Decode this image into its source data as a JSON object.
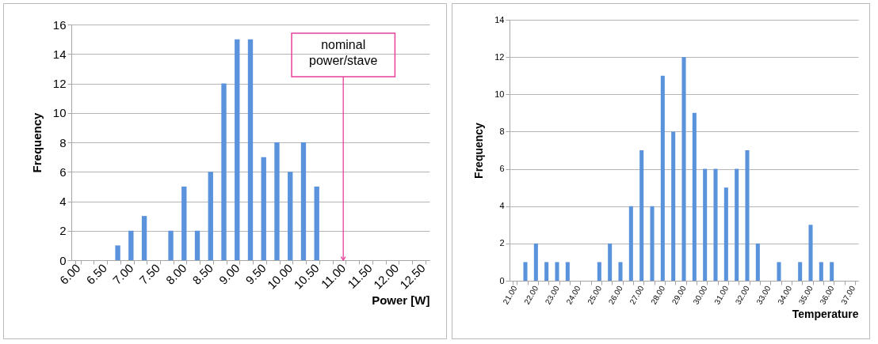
{
  "chart_data": [
    {
      "type": "bar",
      "xlabel": "Power [W]",
      "ylabel": "Frequency",
      "color": "#5a93dc",
      "grid": "y",
      "ylim": [
        0,
        16
      ],
      "yticks": [
        0,
        2,
        4,
        6,
        8,
        10,
        12,
        14,
        16
      ],
      "categories": [
        "6.00",
        null,
        "6.50",
        null,
        "7.00",
        null,
        "7.50",
        null,
        "8.00",
        null,
        "8.50",
        null,
        "9.00",
        null,
        "9.50",
        null,
        "10.00",
        null,
        "10.50",
        null,
        "11.00",
        null,
        "11.50",
        null,
        "12.00",
        null,
        "12.50"
      ],
      "values": [
        0,
        0,
        0,
        1,
        2,
        3,
        0,
        2,
        5,
        2,
        6,
        12,
        15,
        15,
        7,
        8,
        6,
        8,
        5,
        0,
        0,
        0,
        0,
        0,
        0,
        0,
        0
      ],
      "annotations": [
        {
          "text": "nominal power/stave",
          "x": "11.00",
          "y": 0
        }
      ]
    },
    {
      "type": "bar",
      "xlabel": "Temperature",
      "ylabel": "Frequency",
      "color": "#5a93dc",
      "grid": "y",
      "ylim": [
        0,
        14
      ],
      "yticks": [
        0,
        2,
        4,
        6,
        8,
        10,
        12,
        14
      ],
      "categories": [
        "21.00",
        null,
        "22.00",
        null,
        "23.00",
        null,
        "24.00",
        null,
        "25.00",
        null,
        "26.00",
        null,
        "27.00",
        null,
        "28.00",
        null,
        "29.00",
        null,
        "30.00",
        null,
        "31.00",
        null,
        "32.00",
        null,
        "33.00",
        null,
        "34.00",
        null,
        "35.00",
        null,
        "36.00",
        null,
        "37.00"
      ],
      "values": [
        0,
        1,
        2,
        1,
        1,
        1,
        0,
        0,
        1,
        2,
        1,
        4,
        7,
        4,
        11,
        8,
        12,
        9,
        6,
        6,
        5,
        6,
        7,
        2,
        0,
        1,
        0,
        1,
        3,
        1,
        1,
        0,
        0
      ]
    }
  ]
}
